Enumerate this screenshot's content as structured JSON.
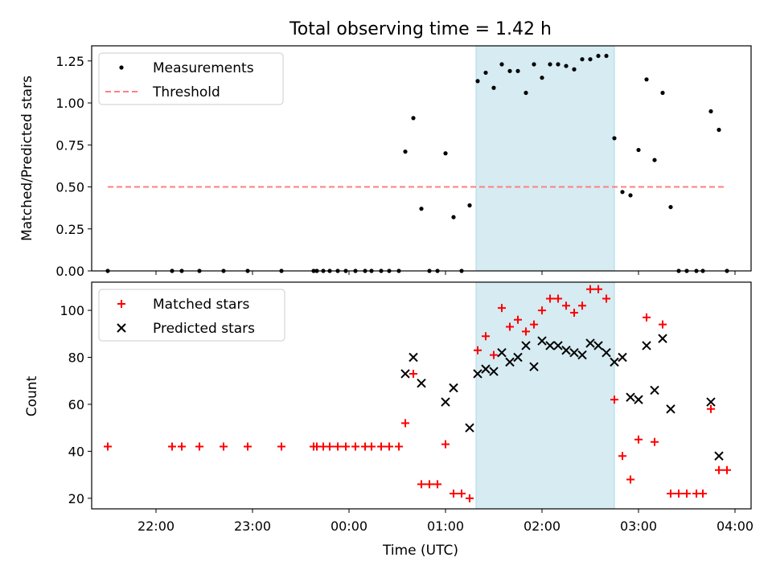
{
  "chart_data": [
    {
      "type": "scatter",
      "title": "Total observing time = 1.42 h",
      "ylabel": "Matched/Predicted stars",
      "xlabel": "",
      "ylim": [
        0,
        1.34
      ],
      "yticks": [
        "0.00",
        "0.25",
        "0.50",
        "0.75",
        "1.00",
        "1.25"
      ],
      "legend_position": "upper-left",
      "highlight_span": [
        "01:19",
        "02:45"
      ],
      "series": [
        {
          "name": "Measurements",
          "marker": "dot",
          "color": "#000000",
          "points": [
            [
              "21:30",
              0.0
            ],
            [
              "22:10",
              0.0
            ],
            [
              "22:16",
              0.0
            ],
            [
              "22:27",
              0.0
            ],
            [
              "22:42",
              0.0
            ],
            [
              "22:57",
              0.0
            ],
            [
              "23:18",
              0.0
            ],
            [
              "23:38",
              0.0
            ],
            [
              "23:40",
              0.0
            ],
            [
              "23:44",
              0.0
            ],
            [
              "23:48",
              0.0
            ],
            [
              "23:53",
              0.0
            ],
            [
              "23:58",
              0.0
            ],
            [
              "00:04",
              0.0
            ],
            [
              "00:10",
              0.0
            ],
            [
              "00:14",
              0.0
            ],
            [
              "00:20",
              0.0
            ],
            [
              "00:25",
              0.0
            ],
            [
              "00:31",
              0.0
            ],
            [
              "00:35",
              0.71
            ],
            [
              "00:40",
              0.91
            ],
            [
              "00:45",
              0.37
            ],
            [
              "00:50",
              0.0
            ],
            [
              "00:55",
              0.0
            ],
            [
              "01:00",
              0.7
            ],
            [
              "01:05",
              0.32
            ],
            [
              "01:10",
              0.0
            ],
            [
              "01:15",
              0.39
            ],
            [
              "01:20",
              1.13
            ],
            [
              "01:25",
              1.18
            ],
            [
              "01:30",
              1.09
            ],
            [
              "01:35",
              1.23
            ],
            [
              "01:40",
              1.19
            ],
            [
              "01:45",
              1.19
            ],
            [
              "01:50",
              1.06
            ],
            [
              "01:55",
              1.23
            ],
            [
              "02:00",
              1.15
            ],
            [
              "02:05",
              1.23
            ],
            [
              "02:10",
              1.23
            ],
            [
              "02:15",
              1.22
            ],
            [
              "02:20",
              1.2
            ],
            [
              "02:25",
              1.26
            ],
            [
              "02:30",
              1.26
            ],
            [
              "02:35",
              1.28
            ],
            [
              "02:40",
              1.28
            ],
            [
              "02:45",
              0.79
            ],
            [
              "02:50",
              0.47
            ],
            [
              "02:55",
              0.45
            ],
            [
              "03:00",
              0.72
            ],
            [
              "03:05",
              1.14
            ],
            [
              "03:10",
              0.66
            ],
            [
              "03:15",
              1.06
            ],
            [
              "03:20",
              0.38
            ],
            [
              "03:25",
              0.0
            ],
            [
              "03:30",
              0.0
            ],
            [
              "03:36",
              0.0
            ],
            [
              "03:40",
              0.0
            ],
            [
              "03:45",
              0.95
            ],
            [
              "03:50",
              0.84
            ],
            [
              "03:55",
              0.0
            ]
          ]
        },
        {
          "name": "Threshold",
          "marker": "dashed-line",
          "color": "#ff7f7f",
          "points": [
            [
              "21:30",
              0.5
            ],
            [
              "03:55",
              0.5
            ]
          ]
        }
      ]
    },
    {
      "type": "scatter",
      "title": "",
      "ylabel": "Count",
      "xlabel": "Time (UTC)",
      "ylim": [
        15.5,
        112
      ],
      "yticks": [
        "20",
        "40",
        "60",
        "80",
        "100"
      ],
      "xticks": [
        "22:00",
        "23:00",
        "00:00",
        "01:00",
        "02:00",
        "03:00",
        "04:00"
      ],
      "legend_position": "upper-left",
      "highlight_span": [
        "01:19",
        "02:45"
      ],
      "series": [
        {
          "name": "Matched stars",
          "marker": "plus",
          "color": "#ff0000",
          "points": [
            [
              "21:30",
              42
            ],
            [
              "22:10",
              42
            ],
            [
              "22:16",
              42
            ],
            [
              "22:27",
              42
            ],
            [
              "22:42",
              42
            ],
            [
              "22:57",
              42
            ],
            [
              "23:18",
              42
            ],
            [
              "23:38",
              42
            ],
            [
              "23:40",
              42
            ],
            [
              "23:44",
              42
            ],
            [
              "23:48",
              42
            ],
            [
              "23:53",
              42
            ],
            [
              "23:58",
              42
            ],
            [
              "00:04",
              42
            ],
            [
              "00:10",
              42
            ],
            [
              "00:14",
              42
            ],
            [
              "00:20",
              42
            ],
            [
              "00:25",
              42
            ],
            [
              "00:31",
              42
            ],
            [
              "00:35",
              52
            ],
            [
              "00:40",
              73
            ],
            [
              "00:45",
              26
            ],
            [
              "00:50",
              26
            ],
            [
              "00:55",
              26
            ],
            [
              "01:00",
              43
            ],
            [
              "01:05",
              22
            ],
            [
              "01:10",
              22
            ],
            [
              "01:15",
              20
            ],
            [
              "01:20",
              83
            ],
            [
              "01:25",
              89
            ],
            [
              "01:30",
              81
            ],
            [
              "01:35",
              101
            ],
            [
              "01:40",
              93
            ],
            [
              "01:45",
              96
            ],
            [
              "01:50",
              91
            ],
            [
              "01:55",
              94
            ],
            [
              "02:00",
              100
            ],
            [
              "02:05",
              105
            ],
            [
              "02:10",
              105
            ],
            [
              "02:15",
              102
            ],
            [
              "02:20",
              99
            ],
            [
              "02:25",
              102
            ],
            [
              "02:30",
              109
            ],
            [
              "02:35",
              109
            ],
            [
              "02:40",
              105
            ],
            [
              "02:45",
              62
            ],
            [
              "02:50",
              38
            ],
            [
              "02:55",
              28
            ],
            [
              "03:00",
              45
            ],
            [
              "03:05",
              97
            ],
            [
              "03:10",
              44
            ],
            [
              "03:15",
              94
            ],
            [
              "03:20",
              22
            ],
            [
              "03:25",
              22
            ],
            [
              "03:30",
              22
            ],
            [
              "03:36",
              22
            ],
            [
              "03:40",
              22
            ],
            [
              "03:45",
              58
            ],
            [
              "03:50",
              32
            ],
            [
              "03:55",
              32
            ]
          ]
        },
        {
          "name": "Predicted stars",
          "marker": "x",
          "color": "#000000",
          "points": [
            [
              "00:35",
              73
            ],
            [
              "00:40",
              80
            ],
            [
              "00:45",
              69
            ],
            [
              "01:00",
              61
            ],
            [
              "01:05",
              67
            ],
            [
              "01:15",
              50
            ],
            [
              "01:20",
              73
            ],
            [
              "01:25",
              75
            ],
            [
              "01:30",
              74
            ],
            [
              "01:35",
              82
            ],
            [
              "01:40",
              78
            ],
            [
              "01:45",
              80
            ],
            [
              "01:50",
              85
            ],
            [
              "01:55",
              76
            ],
            [
              "02:00",
              87
            ],
            [
              "02:05",
              85
            ],
            [
              "02:10",
              85
            ],
            [
              "02:15",
              83
            ],
            [
              "02:20",
              82
            ],
            [
              "02:25",
              81
            ],
            [
              "02:30",
              86
            ],
            [
              "02:35",
              85
            ],
            [
              "02:40",
              82
            ],
            [
              "02:45",
              78
            ],
            [
              "02:50",
              80
            ],
            [
              "02:55",
              63
            ],
            [
              "03:00",
              62
            ],
            [
              "03:05",
              85
            ],
            [
              "03:10",
              66
            ],
            [
              "03:15",
              88
            ],
            [
              "03:20",
              58
            ],
            [
              "03:45",
              61
            ],
            [
              "03:50",
              38
            ]
          ]
        }
      ]
    }
  ]
}
